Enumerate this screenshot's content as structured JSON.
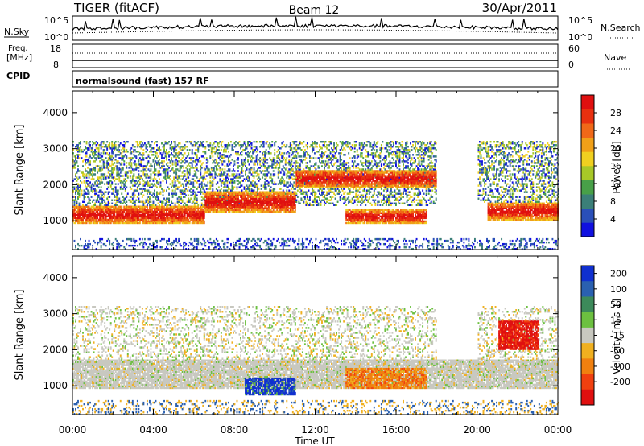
{
  "header": {
    "radar": "TIGER (fitACF)",
    "beam": "Beam 12",
    "date": "30/Apr/2011"
  },
  "top_panels": {
    "nsky_label": "N.Sky",
    "nsearch_label": "N.Search",
    "nsky_tick_hi": "10^5",
    "nsky_tick_lo": "10^0",
    "nsearch_tick_hi": "10^5",
    "nsearch_tick_lo": "10^0",
    "freq_label_1": "Freq.",
    "freq_label_2": "[MHz]",
    "freq_tick_hi": "18",
    "freq_tick_lo": "8",
    "nave_label": "Nave",
    "nave_tick_hi": "60",
    "nave_tick_lo": "0",
    "cpid_label": "CPID",
    "cpid_text": "normalsound (fast) 157 RF"
  },
  "chart_data": [
    {
      "type": "heatmap",
      "panel": "power",
      "ylabel": "Slant Range [km]",
      "yticks": [
        1000,
        2000,
        3000,
        4000
      ],
      "ylim": [
        200,
        4600
      ],
      "xlabel": "Time UT",
      "xticks": [
        "00:00",
        "04:00",
        "08:00",
        "12:00",
        "16:00",
        "20:00",
        "00:00"
      ],
      "xlim_hours": [
        0,
        24
      ],
      "colorbar": {
        "label": "Power [dB]",
        "ticks": [
          "4",
          "8",
          "12",
          "16",
          "20",
          "24",
          "28"
        ],
        "colors": [
          "#1010e0",
          "#2a4fb8",
          "#3b7f78",
          "#48a048",
          "#a8c828",
          "#f0d020",
          "#f0a018",
          "#f06818",
          "#e83010",
          "#e01010"
        ]
      },
      "echo_bands": [
        {
          "t_start": 0.0,
          "t_end": 6.5,
          "range_lo": 900,
          "range_hi": 1400,
          "level": "strong"
        },
        {
          "t_start": 6.5,
          "t_end": 11.0,
          "range_lo": 1200,
          "range_hi": 1800,
          "level": "strong"
        },
        {
          "t_start": 11.0,
          "t_end": 18.0,
          "range_lo": 1900,
          "range_hi": 2400,
          "level": "strong"
        },
        {
          "t_start": 13.5,
          "t_end": 17.5,
          "range_lo": 900,
          "range_hi": 1300,
          "level": "strong"
        },
        {
          "t_start": 20.5,
          "t_end": 24.0,
          "range_lo": 1000,
          "range_hi": 1500,
          "level": "strong"
        },
        {
          "t_start": 0.0,
          "t_end": 18.0,
          "range_lo": 1400,
          "range_hi": 3200,
          "level": "weak"
        },
        {
          "t_start": 20.0,
          "t_end": 24.0,
          "range_lo": 1500,
          "range_hi": 3200,
          "level": "weak"
        }
      ]
    },
    {
      "type": "heatmap",
      "panel": "velocity",
      "ylabel": "Slant Range [km]",
      "yticks": [
        1000,
        2000,
        3000,
        4000
      ],
      "ylim": [
        200,
        4600
      ],
      "xlabel": "Time UT",
      "xticks": [
        "00:00",
        "04:00",
        "08:00",
        "12:00",
        "16:00",
        "20:00",
        "00:00"
      ],
      "xlim_hours": [
        0,
        24
      ],
      "colorbar": {
        "label": "Velocity [m s-1]",
        "ticks": [
          "200",
          "100",
          "50",
          "15",
          "-15",
          "-50",
          "-100",
          "-200"
        ],
        "colors": [
          "#1030d0",
          "#2a60b0",
          "#3c8a5a",
          "#6cc040",
          "#c8c8c0",
          "#f0b020",
          "#f08010",
          "#f04010",
          "#e01010"
        ]
      },
      "echo_regions": [
        {
          "t_start": 0.0,
          "t_end": 24.0,
          "range_lo": 900,
          "range_hi": 1700,
          "class": "ground"
        },
        {
          "t_start": 8.5,
          "t_end": 11.0,
          "range_lo": 700,
          "range_hi": 1200,
          "class": "positive"
        },
        {
          "t_start": 13.5,
          "t_end": 17.5,
          "range_lo": 900,
          "range_hi": 1500,
          "class": "negative"
        },
        {
          "t_start": 21.0,
          "t_end": 23.0,
          "range_lo": 2000,
          "range_hi": 2800,
          "class": "strong_negative"
        }
      ]
    }
  ]
}
